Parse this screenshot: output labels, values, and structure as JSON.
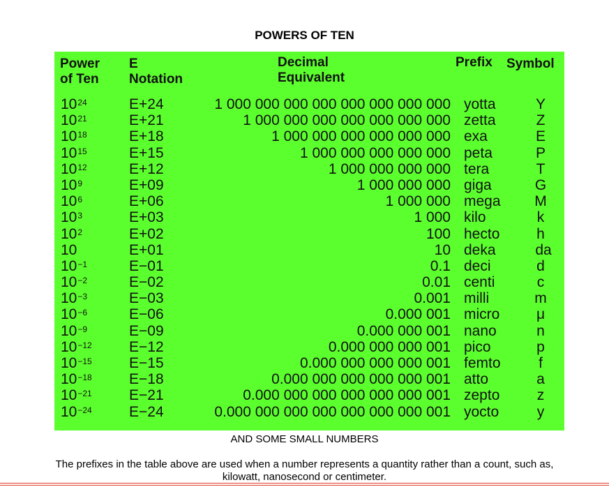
{
  "title": "POWERS OF TEN",
  "headers": {
    "power_l1": "Power",
    "power_l2": "of Ten",
    "enot_l1": "E",
    "enot_l2": "Notation",
    "dec_l1": "Decimal",
    "dec_l2": "Equivalent",
    "prefix": "Prefix",
    "symbol": "Symbol"
  },
  "rows": [
    {
      "base": "10",
      "exp": "24",
      "e": "E+24",
      "dec": "1 000 000 000 000 000 000 000 000",
      "prefix": "yotta",
      "symbol": "Y"
    },
    {
      "base": "10",
      "exp": "21",
      "e": "E+21",
      "dec": "1 000 000 000 000 000 000 000",
      "prefix": "zetta",
      "symbol": "Z"
    },
    {
      "base": "10",
      "exp": "18",
      "e": "E+18",
      "dec": "1 000 000 000 000 000 000",
      "prefix": "exa",
      "symbol": "E"
    },
    {
      "base": "10",
      "exp": "15",
      "e": "E+15",
      "dec": "1 000 000 000 000 000",
      "prefix": "peta",
      "symbol": "P"
    },
    {
      "base": "10",
      "exp": "12",
      "e": "E+12",
      "dec": "1 000 000 000 000",
      "prefix": "tera",
      "symbol": "T"
    },
    {
      "base": "10",
      "exp": "9",
      "e": "E+09",
      "dec": "1 000 000 000",
      "prefix": "giga",
      "symbol": "G"
    },
    {
      "base": "10",
      "exp": "6",
      "e": "E+06",
      "dec": "1 000 000",
      "prefix": "mega",
      "symbol": "M"
    },
    {
      "base": "10",
      "exp": "3",
      "e": "E+03",
      "dec": "1 000",
      "prefix": "kilo",
      "symbol": "k"
    },
    {
      "base": "10",
      "exp": "2",
      "e": "E+02",
      "dec": "100",
      "prefix": "hecto",
      "symbol": "h"
    },
    {
      "base": "10",
      "exp": "",
      "e": "E+01",
      "dec": "10",
      "prefix": "deka",
      "symbol": "da"
    },
    {
      "base": "10",
      "exp": "−1",
      "e": "E−01",
      "dec": "0.1",
      "prefix": "deci",
      "symbol": "d"
    },
    {
      "base": "10",
      "exp": "−2",
      "e": "E−02",
      "dec": "0.01",
      "prefix": "centi",
      "symbol": "c"
    },
    {
      "base": "10",
      "exp": "−3",
      "e": "E−03",
      "dec": "0.001",
      "prefix": "milli",
      "symbol": "m"
    },
    {
      "base": "10",
      "exp": "−6",
      "e": "E−06",
      "dec": "0.000 001",
      "prefix": "micro",
      "symbol": "μ"
    },
    {
      "base": "10",
      "exp": "−9",
      "e": "E−09",
      "dec": "0.000 000 001",
      "prefix": "nano",
      "symbol": "n"
    },
    {
      "base": "10",
      "exp": "−12",
      "e": "E−12",
      "dec": "0.000 000 000 001",
      "prefix": "pico",
      "symbol": "p"
    },
    {
      "base": "10",
      "exp": "−15",
      "e": "E−15",
      "dec": "0.000 000 000 000 001",
      "prefix": "femto",
      "symbol": "f"
    },
    {
      "base": "10",
      "exp": "−18",
      "e": "E−18",
      "dec": "0.000 000 000 000 000 001",
      "prefix": "atto",
      "symbol": "a"
    },
    {
      "base": "10",
      "exp": "−21",
      "e": "E−21",
      "dec": "0.000 000 000 000 000 000 001",
      "prefix": "zepto",
      "symbol": "z"
    },
    {
      "base": "10",
      "exp": "−24",
      "e": "E−24",
      "dec": "0.000 000 000 000 000 000 000 001",
      "prefix": "yocto",
      "symbol": "y"
    }
  ],
  "footer": {
    "subtitle": "AND SOME SMALL NUMBERS",
    "note_l1": "The prefixes in the table above are used when a number represents a quantity rather than a count, such as,",
    "note_l2": "kilowatt, nanosecond or centimeter."
  },
  "colors": {
    "panel": "#5cff2e",
    "rule": "#e23a2a"
  }
}
